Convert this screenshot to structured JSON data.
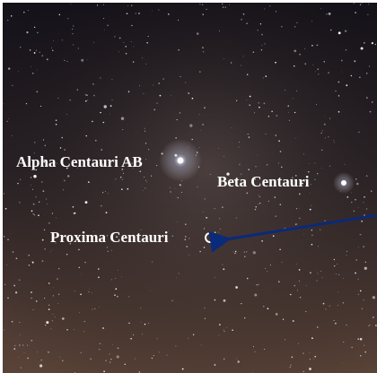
{
  "stars": [
    {
      "label": "Alpha Centauri AB"
    },
    {
      "label": "Beta Centauri"
    },
    {
      "label": "Proxima Centauri"
    }
  ]
}
